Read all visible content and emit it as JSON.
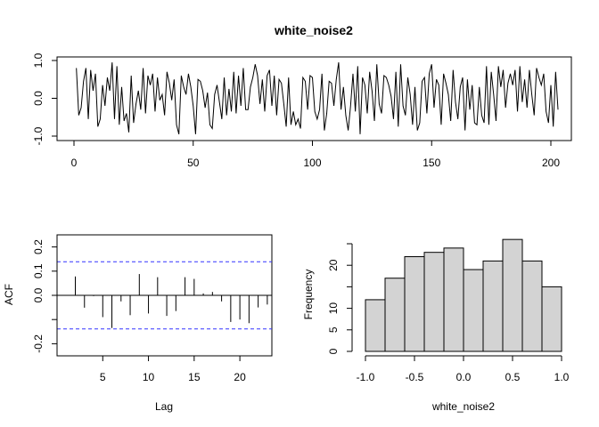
{
  "chart_data": [
    {
      "type": "line",
      "title": "white_noise2",
      "xlabel": "",
      "ylabel": "",
      "xlim": [
        0,
        200
      ],
      "ylim": [
        -1.0,
        1.0
      ],
      "x_ticks": [
        "0",
        "50",
        "100",
        "150",
        "200"
      ],
      "y_ticks": [
        "-1.0",
        "0.0",
        "1.0"
      ],
      "y": [
        0.8,
        -0.45,
        -0.25,
        0.45,
        0.8,
        -0.55,
        0.75,
        0.2,
        0.65,
        -0.75,
        -0.55,
        0.35,
        -0.2,
        0.55,
        0.2,
        0.95,
        -0.55,
        0.85,
        -0.7,
        0.3,
        -0.6,
        -0.4,
        -0.9,
        0.6,
        -0.65,
        -0.15,
        0.2,
        -0.3,
        0.8,
        -0.4,
        0.6,
        0.35,
        0.65,
        -0.35,
        0.55,
        -0.05,
        0.1,
        -0.45,
        0.7,
        0.4,
        -0.05,
        0.5,
        -0.7,
        -0.95,
        0.6,
        0.3,
        0.1,
        0.65,
        0.3,
        -0.2,
        -0.95,
        0.5,
        0.45,
        0.2,
        -0.25,
        0.15,
        -0.7,
        -0.8,
        0.1,
        0.35,
        -0.1,
        -0.55,
        0.55,
        -0.45,
        0.25,
        -0.35,
        0.7,
        -0.4,
        0.6,
        -0.2,
        0.8,
        -0.3,
        -0.3,
        0.3,
        0.55,
        0.9,
        0.6,
        -0.15,
        0.5,
        -0.35,
        0.6,
        0.75,
        -0.2,
        0.6,
        -0.45,
        0.5,
        0.4,
        -0.15,
        -0.75,
        0.55,
        -0.7,
        -0.35,
        -0.7,
        -0.55,
        -0.8,
        0.55,
        0.45,
        -0.3,
        0.6,
        0.55,
        -0.35,
        -0.55,
        -0.3,
        0.65,
        -0.85,
        -0.4,
        0.45,
        0.4,
        -0.2,
        0.5,
        0.95,
        -0.3,
        0.3,
        -0.45,
        -0.85,
        -0.2,
        0.65,
        -0.35,
        0.85,
        -0.95,
        0.55,
        0.35,
        -0.4,
        0.7,
        0.2,
        -0.6,
        0.9,
        -0.15,
        -0.4,
        0.6,
        0.55,
        0.35,
        0.05,
        -0.55,
        0.7,
        -0.75,
        0.9,
        -0.2,
        -0.45,
        0.55,
        0.1,
        -0.7,
        0.3,
        -0.85,
        -0.65,
        0.45,
        0.55,
        -0.4,
        0.65,
        0.9,
        -0.25,
        0.5,
        0.35,
        -0.7,
        0.65,
        0.4,
        0.1,
        -0.6,
        0.75,
        -0.1,
        -0.55,
        0.3,
        0.55,
        -0.85,
        0.5,
        -0.3,
        0.35,
        -0.65,
        -0.7,
        0.3,
        -0.45,
        -0.65,
        0.85,
        -0.7,
        0.7,
        0.1,
        -0.6,
        0.85,
        0.3,
        0.75,
        -0.25,
        0.4,
        0.65,
        0.35,
        0.75,
        -0.35,
        0.85,
        -0.1,
        0.5,
        -0.25,
        0.75,
        0.1,
        -0.45,
        0.8,
        0.55,
        0.35,
        0.65,
        -0.35,
        -0.65,
        0.35,
        -0.75,
        0.7,
        -0.3
      ]
    },
    {
      "type": "bar",
      "title": "",
      "xlabel": "Lag",
      "ylabel": "ACF",
      "xlim": [
        0,
        23.5
      ],
      "ylim": [
        -0.25,
        0.25
      ],
      "x_ticks": [
        "5",
        "10",
        "15",
        "20"
      ],
      "y_ticks": [
        "-0.2",
        "0.0",
        "0.1",
        "0.2"
      ],
      "confidence_limit": 0.139,
      "confidence_color": "#3333ff",
      "lags": [
        1,
        2,
        3,
        4,
        5,
        6,
        7,
        8,
        9,
        10,
        11,
        12,
        13,
        14,
        15,
        16,
        17,
        18,
        19,
        20,
        21,
        22,
        23
      ],
      "values": [
        0.0,
        0.078,
        -0.051,
        -0.003,
        -0.09,
        -0.135,
        -0.025,
        -0.082,
        0.088,
        -0.075,
        0.075,
        -0.085,
        -0.065,
        0.075,
        0.068,
        0.008,
        0.014,
        -0.025,
        -0.11,
        -0.1,
        -0.115,
        -0.05,
        -0.038
      ]
    },
    {
      "type": "bar",
      "title": "",
      "xlabel": "white_noise2",
      "ylabel": "Frequency",
      "xlim": [
        -1.0,
        1.0
      ],
      "ylim": [
        0,
        25
      ],
      "x_ticks": [
        "-1.0",
        "-0.5",
        "0.0",
        "0.5",
        "1.0"
      ],
      "y_ticks": [
        "0",
        "5",
        "10",
        "20"
      ],
      "bin_edges": [
        -1.0,
        -0.8,
        -0.6,
        -0.4,
        -0.2,
        0.0,
        0.2,
        0.4,
        0.6,
        0.8,
        1.0
      ],
      "values": [
        12,
        17,
        22,
        23,
        24,
        19,
        21,
        26,
        21,
        15
      ],
      "bar_color": "#d3d3d3"
    }
  ]
}
